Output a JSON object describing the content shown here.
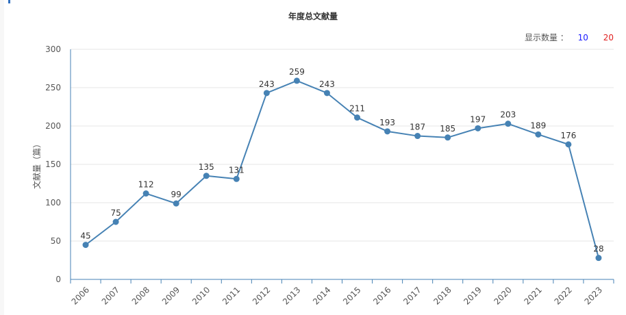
{
  "page": {
    "title": "年度总文献量",
    "display_count": {
      "label": "显示数量 ：",
      "options": [
        "10",
        "20"
      ]
    }
  },
  "chart_data": {
    "type": "line",
    "title": "年度总文献量",
    "ylabel": "文献量（篇）",
    "xlabel": "",
    "ylim": [
      0,
      300
    ],
    "yticks": [
      0,
      50,
      100,
      150,
      200,
      250,
      300
    ],
    "grid": true,
    "legend": "none",
    "categories": [
      "2006",
      "2007",
      "2008",
      "2009",
      "2010",
      "2011",
      "2012",
      "2013",
      "2014",
      "2015",
      "2016",
      "2017",
      "2018",
      "2019",
      "2020",
      "2021",
      "2022",
      "2023"
    ],
    "series": [
      {
        "values": [
          45,
          75,
          112,
          99,
          135,
          131,
          243,
          259,
          243,
          211,
          193,
          187,
          185,
          197,
          203,
          189,
          176,
          28
        ],
        "color": "#4682b4"
      }
    ],
    "colors": {
      "line": "#4682b4",
      "grid": "#e6e6e6",
      "axis": "#4682b4"
    }
  }
}
